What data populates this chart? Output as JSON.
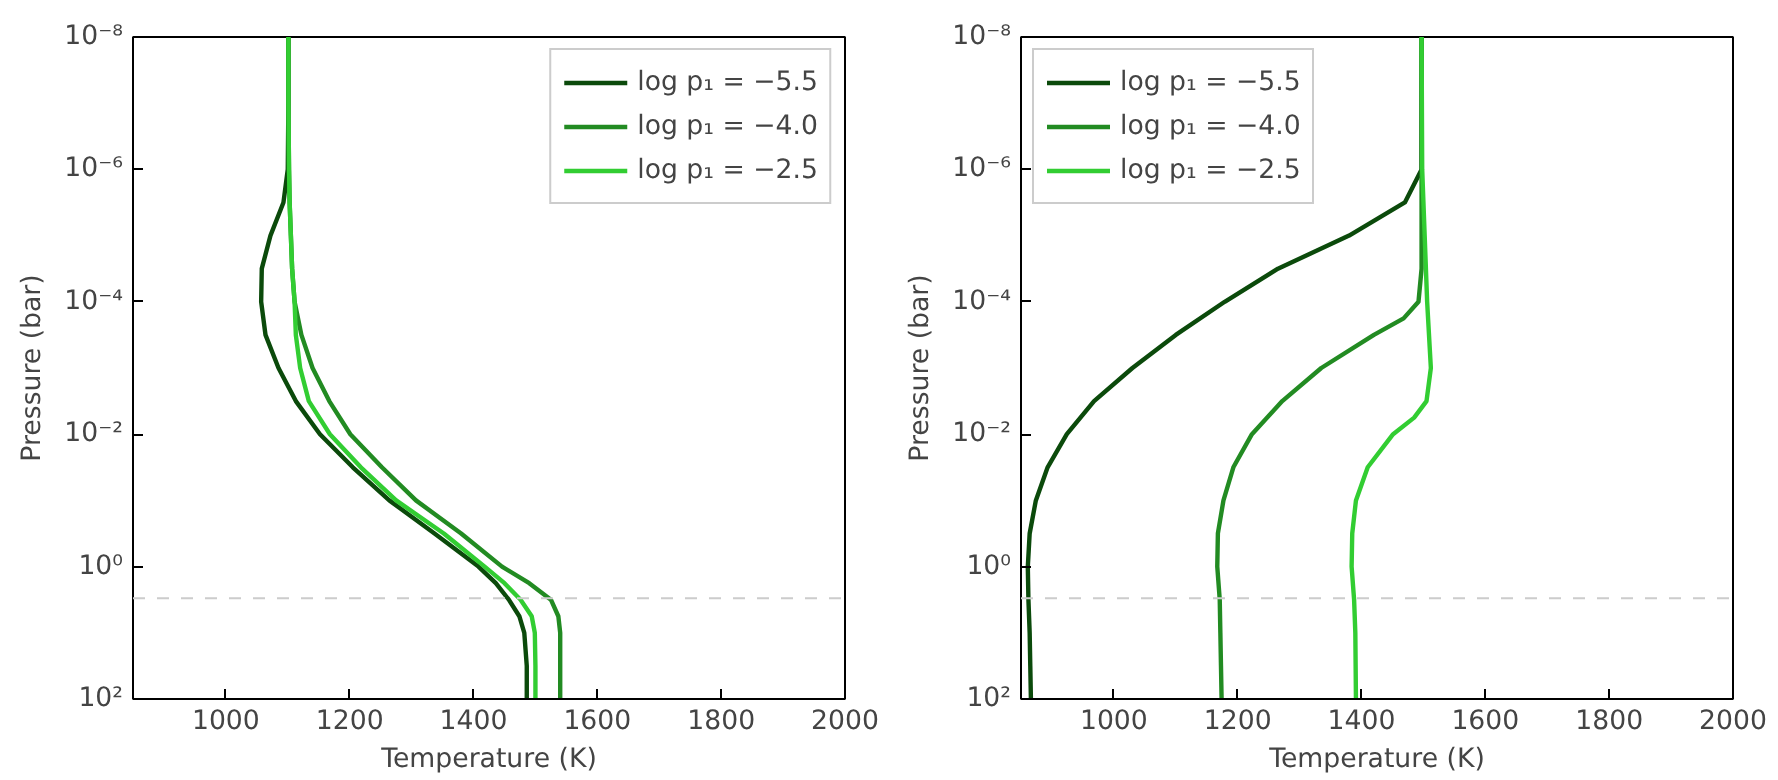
{
  "chart_data": [
    {
      "type": "line",
      "xlabel": "Temperature (K)",
      "ylabel": "Pressure (bar)",
      "log": "y",
      "grid": false,
      "legend": "top right",
      "marker": "none",
      "line_style": "solid",
      "xlim": [
        850,
        2000
      ],
      "xticks": [
        1000,
        1200,
        1400,
        1600,
        1800,
        2000
      ],
      "ylim": [
        100,
        1e-08
      ],
      "yticks": [
        {
          "value": 1e-08,
          "label": "10⁻⁸"
        },
        {
          "value": 1e-06,
          "label": "10⁻⁶"
        },
        {
          "value": 0.0001,
          "label": "10⁻⁴"
        },
        {
          "value": 0.01,
          "label": "10⁻²"
        },
        {
          "value": 1,
          "label": "10⁰"
        },
        {
          "value": 100,
          "label": "10²"
        }
      ],
      "ref_lines": [
        {
          "axis": "y",
          "value": 3,
          "color": "#cccccc",
          "line_style": "dashed"
        }
      ],
      "series": [
        {
          "name": "log p₁ = −5.5",
          "color": "#0b4a0b",
          "x": [
            1101,
            1101,
            1100,
            1093,
            1072,
            1058,
            1057,
            1064,
            1085,
            1113,
            1152,
            1205,
            1264,
            1337,
            1408,
            1436,
            1457,
            1474,
            1482,
            1486,
            1486
          ],
          "values": [
            1e-08,
            1e-07,
            1e-06,
            3.16e-06,
            1e-05,
            3.16e-05,
            0.0001,
            0.000316,
            0.001,
            0.00316,
            0.01,
            0.0316,
            0.1,
            0.316,
            1,
            1.78,
            3.16,
            5.62,
            10,
            31.6,
            100
          ]
        },
        {
          "name": "log p₁ = −4.0",
          "color": "#228b22",
          "x": [
            1101,
            1101,
            1102,
            1103,
            1105,
            1107,
            1111,
            1122,
            1140,
            1167,
            1201,
            1252,
            1307,
            1380,
            1446,
            1490,
            1525,
            1537,
            1540,
            1540,
            1540
          ],
          "values": [
            1e-08,
            1e-07,
            1e-06,
            3.16e-06,
            1e-05,
            3.16e-05,
            0.0001,
            0.000316,
            0.001,
            0.00316,
            0.01,
            0.0316,
            0.1,
            0.316,
            1,
            1.78,
            3.16,
            5.62,
            10,
            31.6,
            100
          ]
        },
        {
          "name": "log p₁ = −2.5",
          "color": "#32cd32",
          "x": [
            1101,
            1101,
            1102,
            1103,
            1105,
            1107,
            1111,
            1113,
            1120,
            1134,
            1168,
            1218,
            1275,
            1352,
            1418,
            1450,
            1476,
            1494,
            1499,
            1500,
            1500
          ],
          "values": [
            1e-08,
            1e-07,
            1e-06,
            3.16e-06,
            1e-05,
            3.16e-05,
            0.0001,
            0.000316,
            0.001,
            0.00316,
            0.01,
            0.0316,
            0.1,
            0.316,
            1,
            1.78,
            3.16,
            5.62,
            10,
            31.6,
            100
          ]
        }
      ]
    },
    {
      "type": "line",
      "xlabel": "Temperature (K)",
      "ylabel": "Pressure (bar)",
      "log": "y",
      "grid": false,
      "legend": "top left",
      "marker": "none",
      "line_style": "solid",
      "xlim": [
        850,
        2000
      ],
      "xticks": [
        1000,
        1200,
        1400,
        1600,
        1800,
        2000
      ],
      "ylim": [
        100,
        1e-08
      ],
      "yticks": [
        {
          "value": 1e-08,
          "label": "10⁻⁸"
        },
        {
          "value": 1e-06,
          "label": "10⁻⁶"
        },
        {
          "value": 0.0001,
          "label": "10⁻⁴"
        },
        {
          "value": 0.01,
          "label": "10⁻²"
        },
        {
          "value": 1,
          "label": "10⁰"
        },
        {
          "value": 100,
          "label": "10²"
        }
      ],
      "ref_lines": [
        {
          "axis": "y",
          "value": 3,
          "color": "#cccccc",
          "line_style": "dashed"
        }
      ],
      "series": [
        {
          "name": "log p₁ = −5.5",
          "color": "#0b4a0b",
          "x": [
            1497,
            1497,
            1497,
            1470,
            1380,
            1265,
            1179,
            1100,
            1030,
            968,
            924,
            893,
            874,
            864,
            861,
            862,
            864,
            865,
            866
          ],
          "values": [
            1e-08,
            1e-07,
            1e-06,
            3.16e-06,
            1e-05,
            3.16e-05,
            0.0001,
            0.000316,
            0.001,
            0.00316,
            0.01,
            0.0316,
            0.1,
            0.316,
            1,
            3.16,
            10,
            31.6,
            100
          ]
        },
        {
          "name": "log p₁ = −4.0",
          "color": "#228b22",
          "x": [
            1497,
            1497,
            1497,
            1497,
            1497,
            1492,
            1468,
            1420,
            1335,
            1272,
            1223,
            1193,
            1177,
            1168,
            1167,
            1171,
            1172,
            1173,
            1174
          ],
          "values": [
            1e-08,
            1e-07,
            1e-06,
            1e-05,
            3.16e-05,
            0.0001,
            0.000178,
            0.000316,
            0.001,
            0.00316,
            0.01,
            0.0316,
            0.1,
            0.316,
            1,
            3.16,
            10,
            31.6,
            100
          ]
        },
        {
          "name": "log p₁ = −2.5",
          "color": "#32cd32",
          "x": [
            1497,
            1498,
            1502,
            1506,
            1512,
            1505,
            1485,
            1451,
            1410,
            1391,
            1385,
            1384,
            1388,
            1390,
            1391
          ],
          "values": [
            1e-08,
            1e-06,
            1e-05,
            0.0001,
            0.001,
            0.00316,
            0.00562,
            0.01,
            0.0316,
            0.1,
            0.316,
            1,
            3.16,
            10,
            100
          ]
        }
      ]
    }
  ]
}
